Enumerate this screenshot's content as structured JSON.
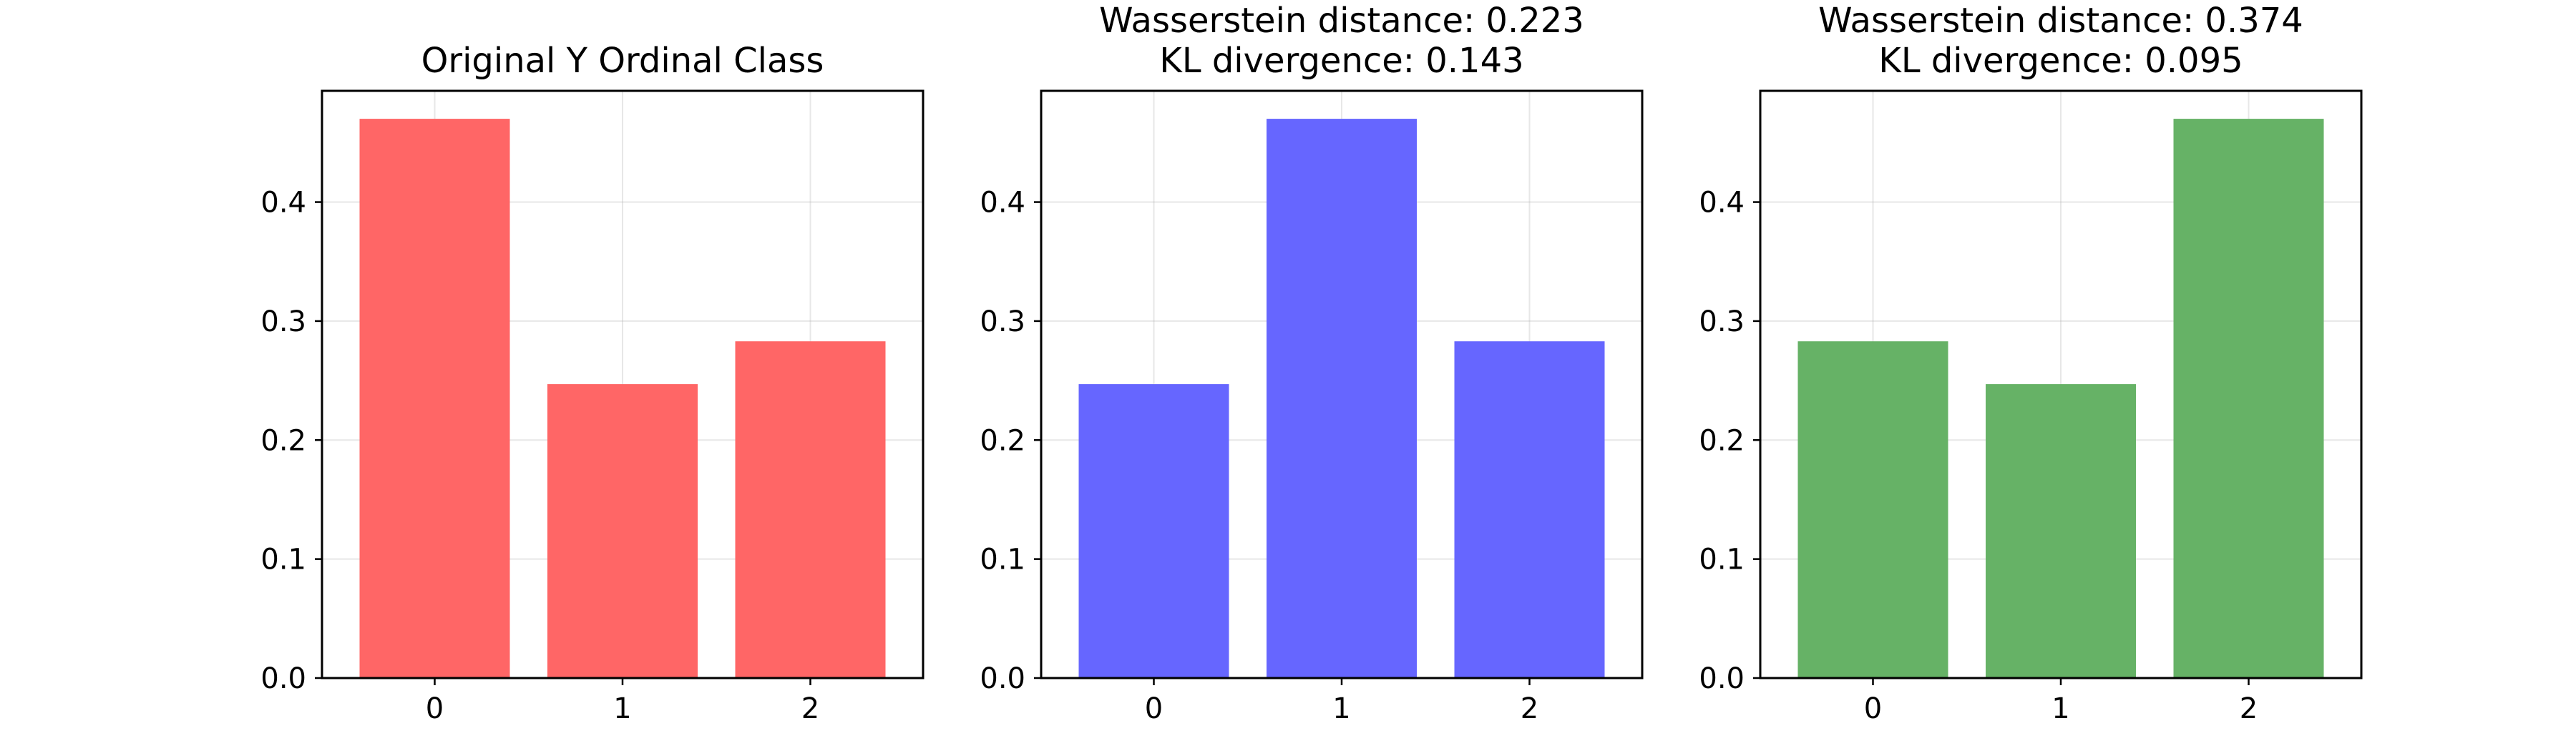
{
  "chart_data": [
    {
      "type": "bar",
      "title_lines": [
        "Original Y Ordinal Class"
      ],
      "xlabel": "",
      "ylabel": "",
      "categories": [
        "0",
        "1",
        "2"
      ],
      "values": [
        0.47,
        0.247,
        0.283
      ],
      "color": "#ff6666",
      "ylim": [
        0,
        0.4935
      ],
      "yticks": [
        0.0,
        0.1,
        0.2,
        0.3,
        0.4
      ],
      "ytick_labels": [
        "0.0",
        "0.1",
        "0.2",
        "0.3",
        "0.4"
      ],
      "grid": true,
      "legend": "none"
    },
    {
      "type": "bar",
      "title_lines": [
        "Wasserstein distance: 0.223",
        "KL divergence: 0.143"
      ],
      "xlabel": "",
      "ylabel": "",
      "categories": [
        "0",
        "1",
        "2"
      ],
      "values": [
        0.247,
        0.47,
        0.283
      ],
      "color": "#6666ff",
      "ylim": [
        0,
        0.4935
      ],
      "yticks": [
        0.0,
        0.1,
        0.2,
        0.3,
        0.4
      ],
      "ytick_labels": [
        "0.0",
        "0.1",
        "0.2",
        "0.3",
        "0.4"
      ],
      "grid": true,
      "legend": "none"
    },
    {
      "type": "bar",
      "title_lines": [
        "Wasserstein distance: 0.374",
        "KL divergence: 0.095"
      ],
      "xlabel": "",
      "ylabel": "",
      "categories": [
        "0",
        "1",
        "2"
      ],
      "values": [
        0.283,
        0.247,
        0.47
      ],
      "color": "#66b266",
      "ylim": [
        0,
        0.4935
      ],
      "yticks": [
        0.0,
        0.1,
        0.2,
        0.3,
        0.4
      ],
      "ytick_labels": [
        "0.0",
        "0.1",
        "0.2",
        "0.3",
        "0.4"
      ],
      "grid": true,
      "legend": "none"
    }
  ]
}
